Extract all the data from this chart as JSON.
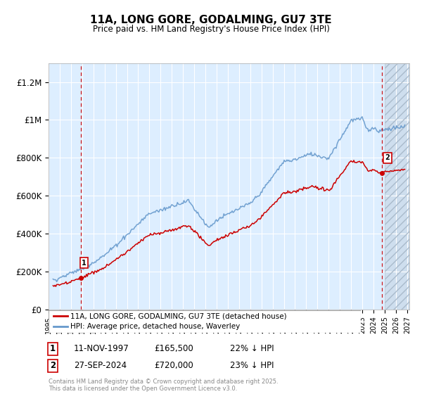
{
  "title_line1": "11A, LONG GORE, GODALMING, GU7 3TE",
  "title_line2": "Price paid vs. HM Land Registry's House Price Index (HPI)",
  "ylabel_ticks": [
    "£0",
    "£200K",
    "£400K",
    "£600K",
    "£800K",
    "£1M",
    "£1.2M"
  ],
  "ytick_values": [
    0,
    200000,
    400000,
    600000,
    800000,
    1000000,
    1200000
  ],
  "ylim": [
    0,
    1300000
  ],
  "xlim_start": 1995.3,
  "xlim_end": 2027.2,
  "sale1_year": 1997.87,
  "sale1_price": 165500,
  "sale2_year": 2024.75,
  "sale2_price": 720000,
  "legend_line1": "11A, LONG GORE, GODALMING, GU7 3TE (detached house)",
  "legend_line2": "HPI: Average price, detached house, Waverley",
  "annotation1_date": "11-NOV-1997",
  "annotation1_price": "£165,500",
  "annotation1_hpi": "22% ↓ HPI",
  "annotation2_date": "27-SEP-2024",
  "annotation2_price": "£720,000",
  "annotation2_hpi": "23% ↓ HPI",
  "footer_text": "Contains HM Land Registry data © Crown copyright and database right 2025.\nThis data is licensed under the Open Government Licence v3.0.",
  "red_color": "#cc0000",
  "blue_color": "#6699cc",
  "bg_color": "#ddeeff",
  "grid_color": "#ffffff",
  "vline_color": "#cc0000",
  "future_start": 2025.0
}
